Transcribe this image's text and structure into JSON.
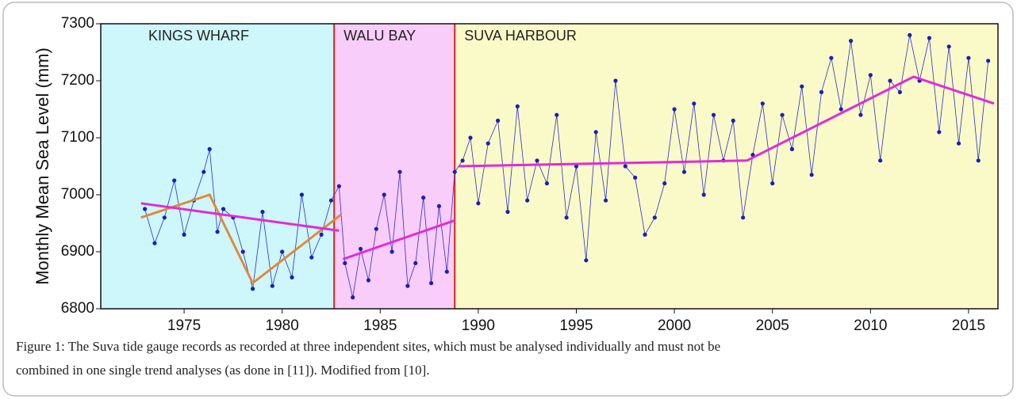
{
  "chart_data": {
    "type": "line",
    "y_label": "Monthly Mean Sea Level (mm)",
    "caption": [
      "Figure 1: The Suva tide gauge records as recorded at three independent sites, which must be analysed individually and must not be",
      "combined in one single trend analyses (as done in [11]). Modified from [10]."
    ],
    "xlim": [
      1970.75,
      2016.5
    ],
    "ylim": [
      6800,
      7300
    ],
    "xticks": [
      1975,
      1980,
      1985,
      1990,
      1995,
      2000,
      2005,
      2010,
      2015
    ],
    "yticks": [
      6800,
      6900,
      7000,
      7100,
      7200,
      7300
    ],
    "regions": [
      {
        "name": "KINGS WHARF",
        "start": 1970.75,
        "end": 1982.65,
        "color": "#cdf7fb"
      },
      {
        "name": "WALU BAY",
        "start": 1982.65,
        "end": 1988.8,
        "color": "#f9cdf9"
      },
      {
        "name": "SUVA HARBOUR",
        "start": 1988.8,
        "end": 2016.5,
        "color": "#fafac8"
      }
    ],
    "series": [
      {
        "color": "#2a2fd0",
        "x": [
          1973.0,
          1973.5,
          1974.0,
          1974.5,
          1975.0,
          1975.5,
          1976.0,
          1976.3,
          1976.7,
          1977.0,
          1977.5,
          1978.0,
          1978.5,
          1979.0,
          1979.5,
          1980.0,
          1980.5,
          1981.0,
          1981.5,
          1982.0,
          1982.5,
          1982.9,
          1983.2,
          1983.6,
          1984.0,
          1984.4,
          1984.8,
          1985.2,
          1985.6,
          1986.0,
          1986.4,
          1986.8,
          1987.2,
          1987.6,
          1988.0,
          1988.4,
          1988.8,
          1989.2,
          1989.6,
          1990.0,
          1990.5,
          1991.0,
          1991.5,
          1992.0,
          1992.5,
          1993.0,
          1993.5,
          1994.0,
          1994.5,
          1995.0,
          1995.5,
          1996.0,
          1996.5,
          1997.0,
          1997.5,
          1998.0,
          1998.5,
          1999.0,
          1999.5,
          2000.0,
          2000.5,
          2001.0,
          2001.5,
          2002.0,
          2002.5,
          2003.0,
          2003.5,
          2004.0,
          2004.5,
          2005.0,
          2005.5,
          2006.0,
          2006.5,
          2007.0,
          2007.5,
          2008.0,
          2008.5,
          2009.0,
          2009.5,
          2010.0,
          2010.5,
          2011.0,
          2011.5,
          2012.0,
          2012.5,
          2013.0,
          2013.5,
          2014.0,
          2014.5,
          2015.0,
          2015.5,
          2016.0
        ],
        "values": [
          6975,
          6915,
          6960,
          7025,
          6930,
          6990,
          7040,
          7080,
          6935,
          6975,
          6960,
          6900,
          6835,
          6970,
          6840,
          6900,
          6855,
          7000,
          6890,
          6930,
          6990,
          7015,
          6880,
          6820,
          6905,
          6850,
          6940,
          7000,
          6900,
          7040,
          6840,
          6880,
          6995,
          6845,
          6980,
          6865,
          7040,
          7060,
          7100,
          6985,
          7090,
          7130,
          6970,
          7155,
          6990,
          7060,
          7020,
          7140,
          6960,
          7050,
          6885,
          7110,
          6990,
          7200,
          7050,
          7030,
          6930,
          6960,
          7020,
          7150,
          7040,
          7160,
          7000,
          7140,
          7060,
          7130,
          6960,
          7070,
          7160,
          7020,
          7140,
          7080,
          7190,
          7035,
          7180,
          7240,
          7150,
          7270,
          7140,
          7210,
          7060,
          7200,
          7180,
          7280,
          7200,
          7275,
          7110,
          7260,
          7090,
          7240,
          7060,
          7235
        ]
      }
    ],
    "trend_lines": [
      {
        "color": "#e08a3a",
        "x": [
          1972.8,
          1976.3,
          1978.5,
          1983.0
        ],
        "values": [
          6960,
          7000,
          6845,
          6965
        ]
      },
      {
        "color": "#e22ad8",
        "x": [
          1972.8,
          1982.9
        ],
        "values": [
          6985,
          6937
        ]
      },
      {
        "color": "#e22ad8",
        "x": [
          1983.1,
          1988.8
        ],
        "values": [
          6887,
          6955
        ]
      },
      {
        "color": "#e22ad8",
        "x": [
          1989.0,
          2003.7,
          2012.2,
          2016.3
        ],
        "values": [
          7050,
          7060,
          7207,
          7160
        ]
      }
    ]
  }
}
